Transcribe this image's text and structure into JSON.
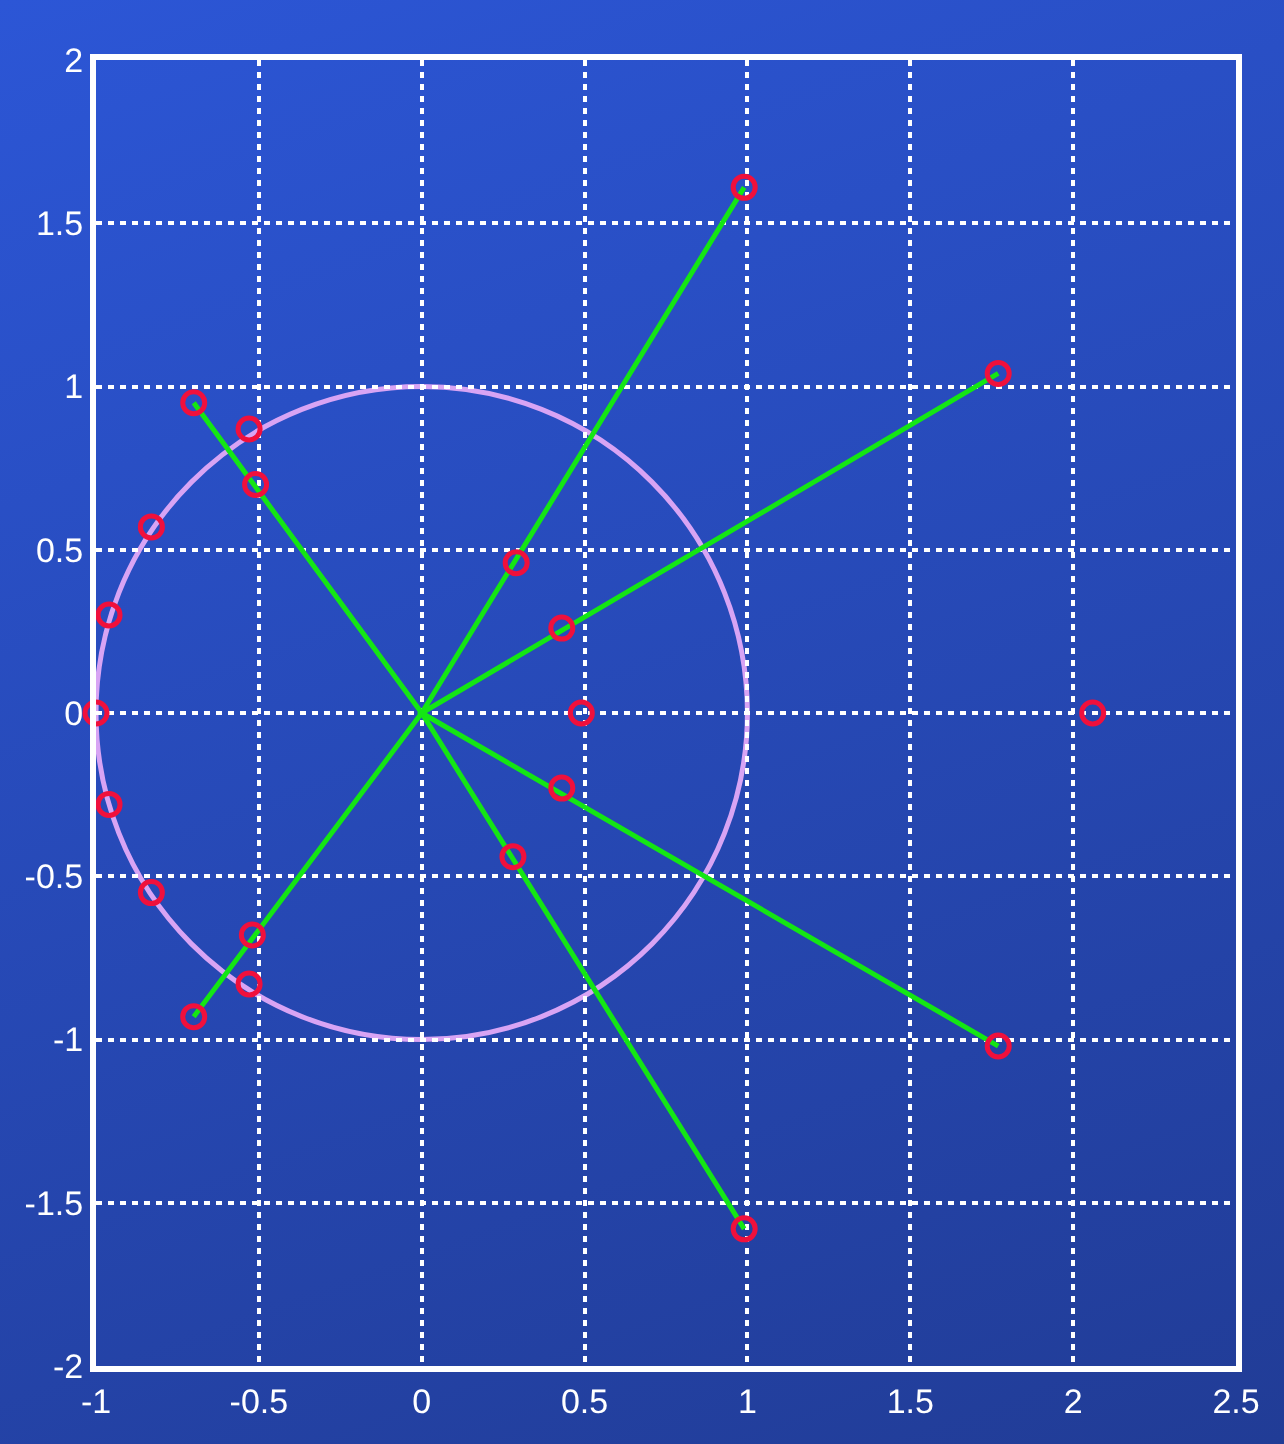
{
  "chart_data": {
    "type": "scatter",
    "xlim": [
      -1,
      2.5
    ],
    "ylim": [
      -2,
      2
    ],
    "xticks": [
      -1,
      -0.5,
      0,
      0.5,
      1,
      1.5,
      2,
      2.5
    ],
    "yticks": [
      -2,
      -1.5,
      -1,
      -0.5,
      0,
      0.5,
      1,
      1.5,
      2
    ],
    "grid": true,
    "line_style": "solid",
    "series": [
      {
        "type": "line",
        "marker": "none",
        "color": "#14e614",
        "x": [
          0.99,
          0,
          1.77,
          0,
          1.77,
          0,
          0.99,
          0,
          -0.7,
          0,
          -0.7
        ],
        "values": [
          1.61,
          0,
          1.04,
          0,
          -1.02,
          0,
          -1.58,
          0,
          -0.93,
          0,
          0.95
        ]
      },
      {
        "marker": "circle",
        "color": "#f0103c",
        "x": [
          0.99,
          1.77,
          0.29,
          0.43,
          0.49,
          2.06,
          0.43,
          0.28,
          1.77,
          0.99,
          -0.7,
          -0.53,
          -0.51,
          -0.83,
          -0.96,
          -1,
          -0.96,
          -0.83,
          -0.52,
          -0.53,
          -0.7
        ],
        "values": [
          1.61,
          1.04,
          0.46,
          0.26,
          0,
          0,
          -0.23,
          -0.44,
          -1.02,
          -1.58,
          0.95,
          0.87,
          0.7,
          0.57,
          0.3,
          0,
          -0.28,
          -0.55,
          -0.68,
          -0.83,
          -0.93
        ]
      }
    ]
  }
}
